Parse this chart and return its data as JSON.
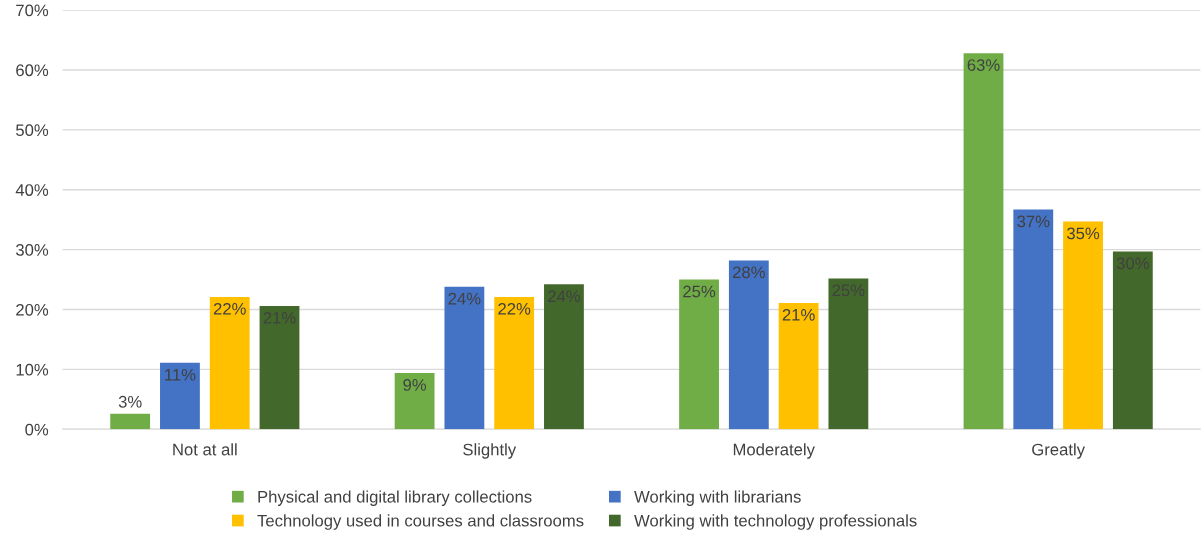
{
  "chart_data": {
    "type": "bar",
    "categories": [
      "Not at all",
      "Slightly",
      "Moderately",
      "Greatly"
    ],
    "series": [
      {
        "name": "Physical and digital library collections",
        "color": "#70ad47",
        "values": [
          2.6,
          9.4,
          25.0,
          62.8
        ],
        "value_labels": [
          "3%",
          "9%",
          "25%",
          "63%"
        ]
      },
      {
        "name": "Working with librarians",
        "color": "#4472c4",
        "values": [
          11.1,
          23.8,
          28.2,
          36.7
        ],
        "value_labels": [
          "11%",
          "24%",
          "28%",
          "37%"
        ]
      },
      {
        "name": "Technology used in courses and classrooms",
        "color": "#ffc000",
        "values": [
          22.1,
          22.1,
          21.1,
          34.7
        ],
        "value_labels": [
          "22%",
          "22%",
          "21%",
          "35%"
        ]
      },
      {
        "name": "Working with technology professionals",
        "color": "#43682b",
        "values": [
          20.6,
          24.2,
          25.2,
          29.7
        ],
        "value_labels": [
          "21%",
          "24%",
          "25%",
          "30%"
        ]
      }
    ],
    "ylim": [
      0,
      70
    ],
    "yticks": [
      {
        "value": 0,
        "label": "0%"
      },
      {
        "value": 10,
        "label": "10%"
      },
      {
        "value": 20,
        "label": "20%"
      },
      {
        "value": 30,
        "label": "30%"
      },
      {
        "value": 40,
        "label": "40%"
      },
      {
        "value": 50,
        "label": "50%"
      },
      {
        "value": 60,
        "label": "60%"
      },
      {
        "value": 70,
        "label": "70%"
      }
    ],
    "grid": "y",
    "legend": "bottom"
  }
}
